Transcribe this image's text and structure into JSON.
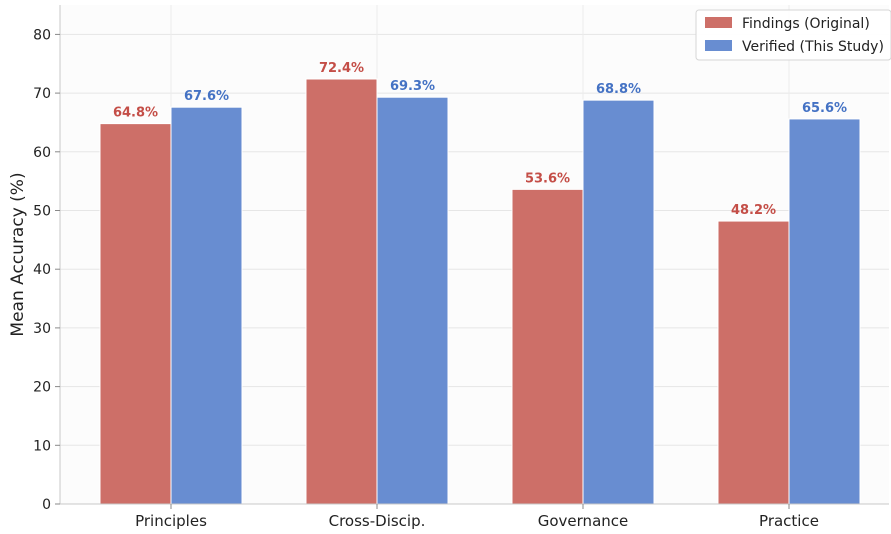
{
  "chart_data": {
    "type": "bar",
    "categories": [
      "Principles",
      "Cross-Discip.",
      "Governance",
      "Practice"
    ],
    "series": [
      {
        "name": "Findings (Original)",
        "values": [
          64.8,
          72.4,
          53.6,
          48.2
        ],
        "labels": [
          "64.8%",
          "72.4%",
          "53.6%",
          "48.2%"
        ],
        "color": "#cd6f68",
        "label_color": "#c44e47"
      },
      {
        "name": "Verified (This Study)",
        "values": [
          67.6,
          69.3,
          68.8,
          65.6
        ],
        "labels": [
          "67.6%",
          "69.3%",
          "68.8%",
          "65.6%"
        ],
        "color": "#688dd1",
        "label_color": "#4472c4"
      }
    ],
    "ylabel": "Mean Accuracy (%)",
    "xlabel": "",
    "ylim": [
      0,
      85
    ],
    "yticks": [
      "0",
      "10",
      "20",
      "30",
      "40",
      "50",
      "60",
      "70",
      "80"
    ],
    "grid": true,
    "legend_position": "top-right"
  }
}
